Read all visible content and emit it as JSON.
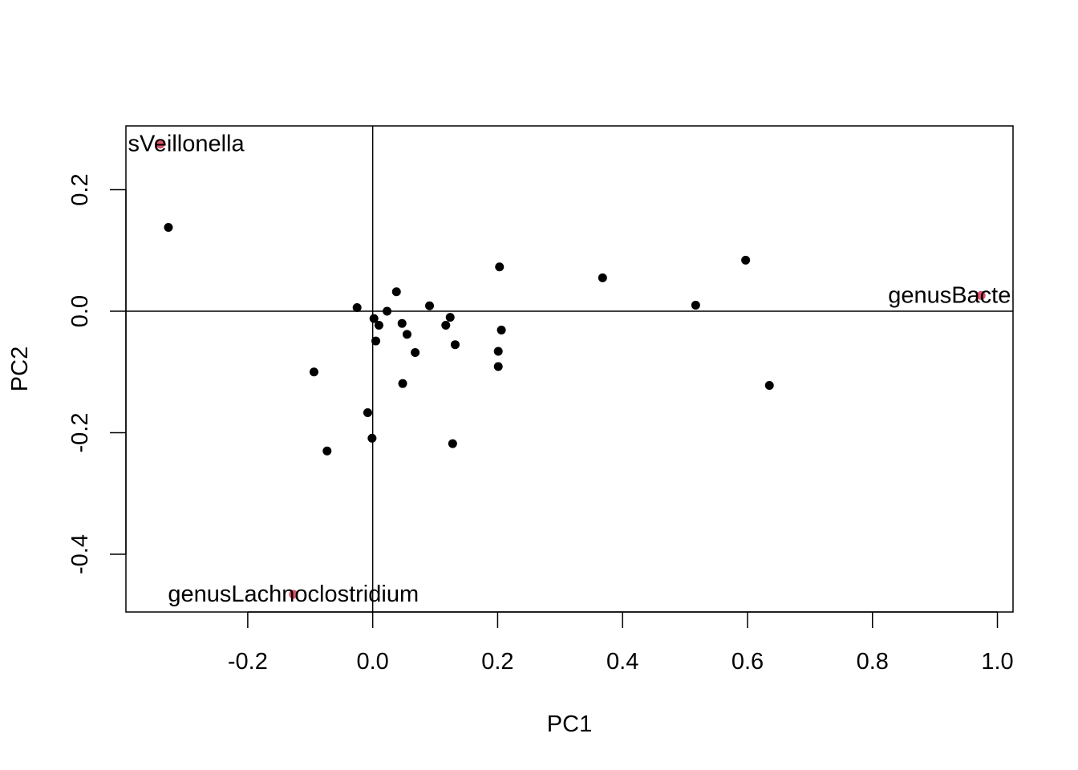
{
  "chart_data": {
    "type": "scatter",
    "title": "",
    "xlabel": "PC1",
    "ylabel": "PC2",
    "xlim": [
      -0.395,
      1.025
    ],
    "ylim": [
      -0.495,
      0.305
    ],
    "x_ticks": [
      -0.2,
      0.0,
      0.2,
      0.4,
      0.6,
      0.8,
      1.0
    ],
    "x_tick_labels": [
      "-0.2",
      "0.0",
      "0.2",
      "0.4",
      "0.6",
      "0.8",
      "1.0"
    ],
    "y_ticks": [
      -0.4,
      -0.2,
      0.0,
      0.2
    ],
    "y_tick_labels": [
      "-0.4",
      "-0.2",
      "0.0",
      "0.2"
    ],
    "reference_lines": {
      "x": 0,
      "y": 0
    },
    "grid": false,
    "colors": {
      "points": "#000000",
      "highlight": "#DF536B"
    },
    "series": [
      {
        "points": [
          {
            "x": -0.327,
            "y": 0.138
          },
          {
            "x": -0.094,
            "y": -0.1
          },
          {
            "x": -0.073,
            "y": -0.23
          },
          {
            "x": -0.025,
            "y": 0.006
          },
          {
            "x": -0.008,
            "y": -0.167
          },
          {
            "x": -0.001,
            "y": -0.209
          },
          {
            "x": 0.002,
            "y": -0.012
          },
          {
            "x": 0.005,
            "y": -0.049
          },
          {
            "x": 0.01,
            "y": -0.023
          },
          {
            "x": 0.023,
            "y": 0.0
          },
          {
            "x": 0.038,
            "y": 0.032
          },
          {
            "x": 0.047,
            "y": -0.02
          },
          {
            "x": 0.048,
            "y": -0.119
          },
          {
            "x": 0.055,
            "y": -0.038
          },
          {
            "x": 0.068,
            "y": -0.068
          },
          {
            "x": 0.091,
            "y": 0.009
          },
          {
            "x": 0.117,
            "y": -0.023
          },
          {
            "x": 0.124,
            "y": -0.01
          },
          {
            "x": 0.128,
            "y": -0.218
          },
          {
            "x": 0.132,
            "y": -0.055
          },
          {
            "x": 0.201,
            "y": -0.066
          },
          {
            "x": 0.201,
            "y": -0.091
          },
          {
            "x": 0.203,
            "y": 0.073
          },
          {
            "x": 0.206,
            "y": -0.031
          },
          {
            "x": 0.368,
            "y": 0.055
          },
          {
            "x": 0.517,
            "y": 0.01
          },
          {
            "x": 0.597,
            "y": 0.084
          },
          {
            "x": 0.635,
            "y": -0.122
          }
        ]
      },
      {
        "points": [
          {
            "x": -0.34,
            "y": 0.275,
            "label": "genusVeillonella"
          },
          {
            "x": 0.974,
            "y": 0.026,
            "label": "genusBacteroides"
          },
          {
            "x": -0.127,
            "y": -0.466,
            "label": "genusLachnoclostridium"
          }
        ]
      }
    ]
  }
}
